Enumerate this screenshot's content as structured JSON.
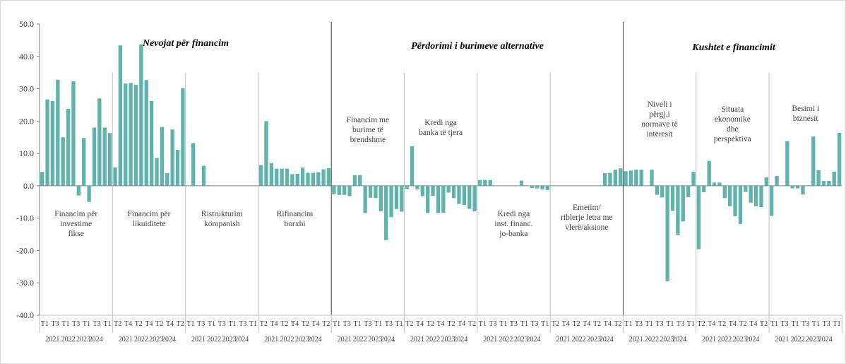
{
  "chart_data": {
    "type": "bar",
    "ylim": [
      -40,
      50
    ],
    "y_ticks": [
      "50.0",
      "40.0",
      "30.0",
      "20.0",
      "10.0",
      "0.0",
      "-10.0",
      "-20.0",
      "-30.0",
      "-40.0"
    ],
    "grid": false,
    "legend": "none",
    "colors": {
      "bar": "#5fb3ad",
      "axis": "#7f7f7f",
      "divider": "#bfbfbf",
      "major_divider": "#404040"
    },
    "panel_titles": [
      "Nevojat për financim",
      "Përdorimi i burimeve alternative",
      "Kushtet e financimit"
    ],
    "groups": [
      {
        "label": [
          "Financim për",
          "investime",
          "fikse"
        ],
        "x_ticks": [
          "T1",
          "T3",
          "T1",
          "T3",
          "T1",
          "T3",
          "T1"
        ],
        "years": [
          "2021",
          "2022",
          "2023",
          "2024"
        ],
        "values": [
          4.3,
          26.7,
          26.2,
          32.8,
          15.0,
          23.8,
          32.3,
          -3.0,
          14.8,
          -5.0,
          18.0,
          27.0,
          18.0,
          16.3
        ]
      },
      {
        "label": [
          "Financim për",
          "likuiditete"
        ],
        "x_ticks": [
          "T2",
          "T4",
          "T2",
          "T4",
          "T2",
          "T4",
          "T2"
        ],
        "years": [
          "2021",
          "2022",
          "2023",
          "2024"
        ],
        "values": [
          5.7,
          43.4,
          31.6,
          31.8,
          31.2,
          43.7,
          32.7,
          26.2,
          8.6,
          18.2,
          3.9,
          17.4,
          11.1,
          30.2
        ]
      },
      {
        "label": [
          "Ristrukturim",
          "kompanish"
        ],
        "x_ticks": [
          "T1",
          "T3",
          "T1",
          "T3",
          "T1",
          "T3",
          "T1"
        ],
        "years": [
          "2021",
          "2022",
          "2023",
          "2024"
        ],
        "values": [
          0,
          13.2,
          0,
          6.2,
          0,
          0,
          0,
          0,
          0,
          0,
          0,
          0,
          0,
          0
        ]
      },
      {
        "label": [
          "Rifinancim",
          "borxhi"
        ],
        "x_ticks": [
          "T2",
          "T4",
          "T2",
          "T4",
          "T2",
          "T4",
          "T2"
        ],
        "years": [
          "2021",
          "2022",
          "2023",
          "2024"
        ],
        "values": [
          6.4,
          20.0,
          7.0,
          5.3,
          5.3,
          5.3,
          3.6,
          3.7,
          5.6,
          4.0,
          4.0,
          4.2,
          5.1,
          5.4
        ]
      },
      {
        "label": [
          "Financim me",
          "burime të",
          "brendshme"
        ],
        "x_ticks": [
          "T1",
          "T3",
          "T1",
          "T3",
          "T1",
          "T3",
          "T1"
        ],
        "years": [
          "2021",
          "2022",
          "2023",
          "2024"
        ],
        "values": [
          -2.6,
          -2.8,
          -2.8,
          -3.2,
          3.3,
          3.3,
          -8.4,
          -3.7,
          -3.8,
          -7.9,
          -16.8,
          -9.7,
          -7.2,
          -8.0
        ]
      },
      {
        "label": [
          "Kredi nga",
          "banka të tjera"
        ],
        "x_ticks": [
          "T2",
          "T4",
          "T2",
          "T4",
          "T2",
          "T4",
          "T2"
        ],
        "years": [
          "2021",
          "2022",
          "2023",
          "2024"
        ],
        "values": [
          -0.9,
          12.2,
          -1.1,
          -3.2,
          -8.4,
          -3.1,
          -8.4,
          -8.3,
          -2.1,
          -3.8,
          -5.6,
          -5.9,
          -7.1,
          -7.9
        ]
      },
      {
        "label": [
          "Kredi nga",
          "inst. financ.",
          "jo-banka"
        ],
        "x_ticks": [
          "T1",
          "T3",
          "T1",
          "T3",
          "T1",
          "T3",
          "T1"
        ],
        "years": [
          "2021",
          "2022",
          "2023",
          "2024"
        ],
        "values": [
          1.8,
          1.8,
          1.8,
          0,
          0,
          0,
          0,
          0,
          1.6,
          0,
          -0.7,
          -0.8,
          -1.1,
          -1.3
        ]
      },
      {
        "label": [
          "Emetim/",
          "riblerje  letra me",
          "vlerë/aksione"
        ],
        "x_ticks": [
          "T2",
          "T4",
          "T2",
          "T4",
          "T2",
          "T4",
          "T2"
        ],
        "years": [
          "2021",
          "2022",
          "2023",
          "2024"
        ],
        "values": [
          0,
          0,
          0,
          0,
          0,
          0,
          0,
          0,
          0,
          0,
          3.9,
          4.0,
          5.0,
          5.4
        ]
      },
      {
        "label": [
          "Niveli i",
          "përgj.i",
          "normave të",
          "interesit"
        ],
        "x_ticks": [
          "T1",
          "T3",
          "T1",
          "T3",
          "T1",
          "T3",
          "T1"
        ],
        "years": [
          "2021",
          "2022",
          "2023",
          "2024"
        ],
        "values": [
          4.5,
          4.7,
          5.0,
          5.0,
          0,
          5.0,
          -2.8,
          -3.6,
          -29.5,
          -7.7,
          -15.1,
          -11.0,
          -3.5,
          4.3
        ]
      },
      {
        "label": [
          "Situata",
          "ekonomike",
          "dhe",
          "perspektiva"
        ],
        "x_ticks": [
          "T2",
          "T4",
          "T2",
          "T4",
          "T2",
          "T4",
          "T2"
        ],
        "years": [
          "2021",
          "2022",
          "2023",
          "2024"
        ],
        "values": [
          -19.6,
          -2.0,
          7.7,
          1.0,
          1.0,
          -3.8,
          -6.3,
          -9.4,
          -11.8,
          -1.9,
          -5.2,
          -6.3,
          -6.6,
          2.6
        ]
      },
      {
        "label": [
          "Besimi i",
          "biznesit"
        ],
        "x_ticks": [
          "T1",
          "T3",
          "T1",
          "T3",
          "T1",
          "T3",
          "T1"
        ],
        "years": [
          "2021",
          "2022",
          "2023",
          "2024"
        ],
        "year_text": [
          "2021",
          "2022",
          "2023",
          "2024"
        ],
        "values": [
          -9.3,
          3.0,
          0,
          13.8,
          -0.8,
          -0.8,
          -2.7,
          0,
          15.2,
          4.8,
          1.5,
          1.5,
          4.4,
          16.4
        ]
      }
    ]
  }
}
